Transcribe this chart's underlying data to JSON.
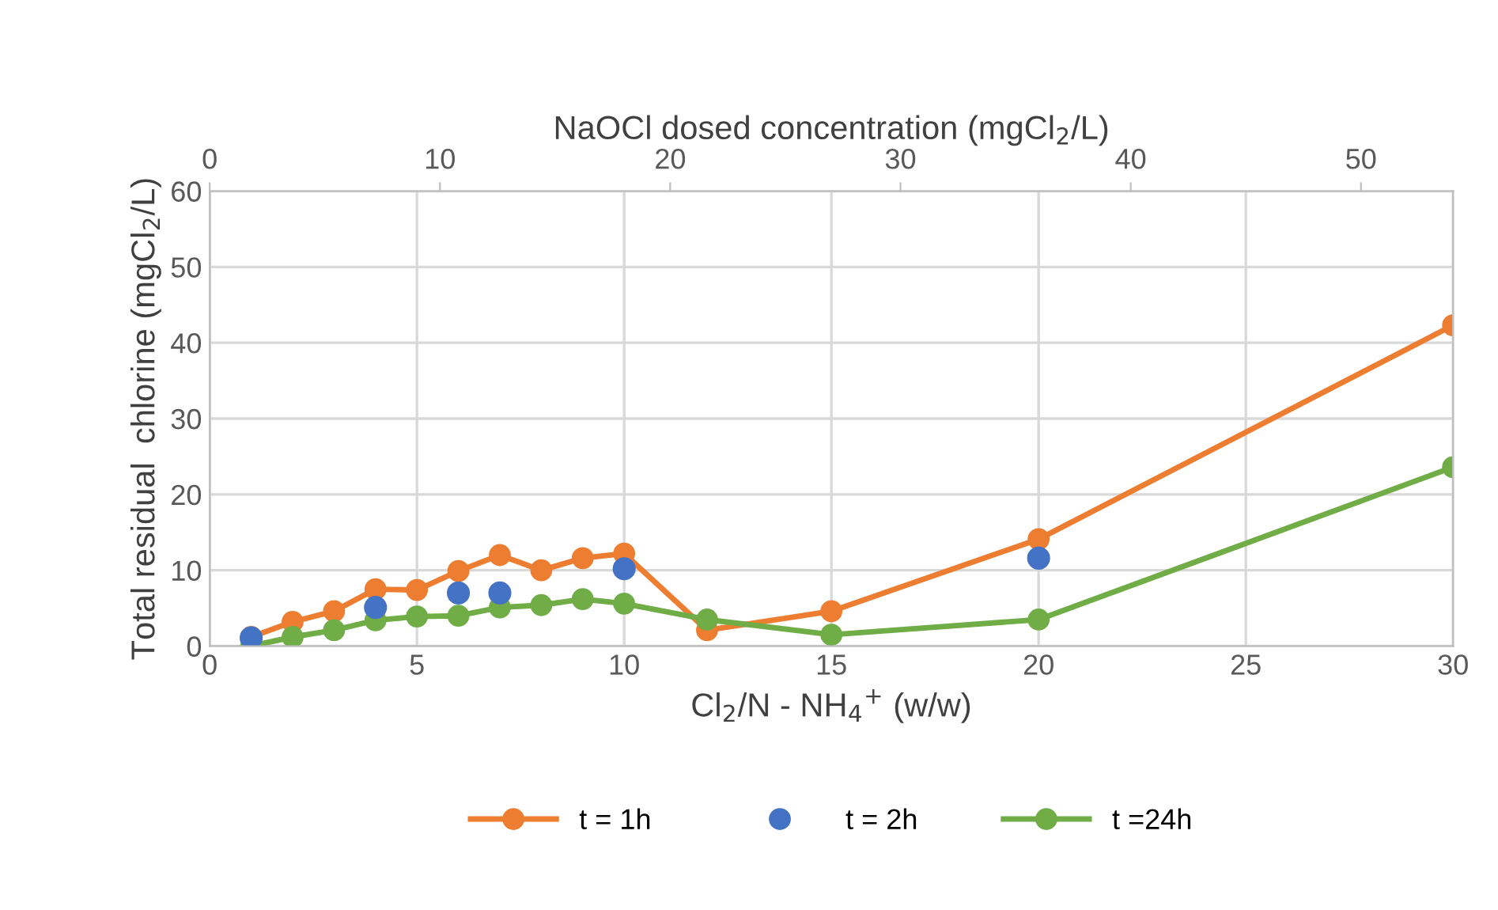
{
  "chart_data": {
    "type": "line",
    "xlabel": "Cl$_{2}$/N - NH$_{4}$$^{+}$ (w/w)",
    "ylabel": "Total residual  chlorine (mgCl$_{2}$/L)",
    "x2label": "NaOCl dosed concentration (mgCl$_{2}$/L)",
    "xlim": [
      0,
      30
    ],
    "xticks": [
      0,
      5,
      10,
      15,
      20,
      25,
      30
    ],
    "ylim": [
      0,
      60
    ],
    "yticks": [
      0,
      10,
      20,
      30,
      40,
      50,
      60
    ],
    "x2lim": [
      0,
      54
    ],
    "x2ticks": [
      0,
      10,
      20,
      30,
      40,
      50
    ],
    "grid": true,
    "legend": "bottom",
    "marker": "circle",
    "series": [
      {
        "name": "t = 1h",
        "color": "#ed7d31",
        "x": [
          1,
          2,
          3,
          4,
          5,
          6,
          7,
          8,
          9,
          10,
          12,
          15,
          20,
          30
        ],
        "values": [
          1.2,
          3.2,
          4.6,
          7.5,
          7.4,
          9.9,
          12,
          10,
          11.6,
          12.2,
          2.1,
          4.6,
          14.1,
          42.3
        ]
      },
      {
        "name": "t = 2h",
        "type": "scatter",
        "color": "#4472c4",
        "x": [
          1,
          4,
          6,
          7,
          10,
          20
        ],
        "values": [
          1.1,
          5.1,
          7.0,
          7.0,
          10.2,
          11.6
        ]
      },
      {
        "name": "t =24h",
        "color": "#70ad47",
        "x": [
          1,
          2,
          3,
          4,
          5,
          6,
          7,
          8,
          9,
          10,
          12,
          15,
          20,
          30
        ],
        "values": [
          0,
          1.2,
          2.1,
          3.4,
          3.9,
          4.0,
          5.1,
          5.4,
          6.2,
          5.6,
          3.5,
          1.5,
          3.5,
          23.6
        ]
      }
    ]
  }
}
